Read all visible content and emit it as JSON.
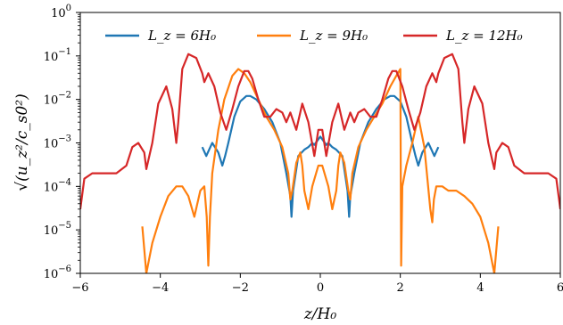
{
  "chart_data": {
    "type": "line",
    "title": "",
    "xlabel": "z/H₀",
    "ylabel": "√(u_z²/c_s0²)",
    "xlim": [
      -6,
      6
    ],
    "ylim": [
      1e-06,
      1
    ],
    "yscale": "log",
    "grid": false,
    "legend_position": "top",
    "x_ticks": [
      -6,
      -4,
      -2,
      0,
      2,
      4,
      6
    ],
    "x_tick_labels": [
      "−6",
      "−4",
      "−2",
      "0",
      "2",
      "4",
      "6"
    ],
    "y_ticks": [
      1e-06,
      1e-05,
      0.0001,
      0.001,
      0.01,
      0.1,
      1
    ],
    "y_tick_labels": [
      {
        "base": "10",
        "exp": "−6"
      },
      {
        "base": "10",
        "exp": "−5"
      },
      {
        "base": "10",
        "exp": "−4"
      },
      {
        "base": "10",
        "exp": "−3"
      },
      {
        "base": "10",
        "exp": "−2"
      },
      {
        "base": "10",
        "exp": "−1"
      },
      {
        "base": "10",
        "exp": "0"
      }
    ],
    "series": [
      {
        "name": "L_z = 6H₀",
        "color": "#1f77b4",
        "x": [
          -2.95,
          -2.85,
          -2.78,
          -2.7,
          -2.55,
          -2.45,
          -2.38,
          -2.3,
          -2.15,
          -2.0,
          -1.85,
          -1.75,
          -1.6,
          -1.4,
          -1.2,
          -1.0,
          -0.85,
          -0.75,
          -0.72,
          -0.68,
          -0.55,
          -0.4,
          -0.3,
          -0.2,
          -0.15,
          0.0,
          0.15,
          0.2,
          0.3,
          0.4,
          0.55,
          0.68,
          0.72,
          0.75,
          0.85,
          1.0,
          1.2,
          1.4,
          1.6,
          1.75,
          1.85,
          2.0,
          2.15,
          2.3,
          2.38,
          2.45,
          2.55,
          2.7,
          2.78,
          2.85,
          2.95
        ],
        "y": [
          0.0008,
          0.0005,
          0.0007,
          0.001,
          0.0006,
          0.0003,
          0.0005,
          0.001,
          0.004,
          0.009,
          0.012,
          0.012,
          0.01,
          0.006,
          0.003,
          0.001,
          0.0002,
          6e-05,
          2e-05,
          8e-05,
          0.0005,
          0.0007,
          0.0008,
          0.001,
          0.0009,
          0.0014,
          0.0009,
          0.001,
          0.0008,
          0.0007,
          0.0005,
          8e-05,
          2e-05,
          6e-05,
          0.0002,
          0.001,
          0.003,
          0.006,
          0.01,
          0.012,
          0.012,
          0.009,
          0.004,
          0.001,
          0.0005,
          0.0003,
          0.0006,
          0.001,
          0.0007,
          0.0005,
          0.0008
        ]
      },
      {
        "name": "L_z = 9H₀",
        "color": "#ff7f0e",
        "x": [
          -4.45,
          -4.35,
          -4.2,
          -4.0,
          -3.8,
          -3.6,
          -3.45,
          -3.3,
          -3.15,
          -3.0,
          -2.9,
          -2.84,
          -2.8,
          -2.76,
          -2.7,
          -2.55,
          -2.4,
          -2.2,
          -2.05,
          -1.9,
          -1.75,
          -1.55,
          -1.35,
          -1.15,
          -0.95,
          -0.8,
          -0.75,
          -0.7,
          -0.6,
          -0.5,
          -0.45,
          -0.4,
          -0.3,
          -0.2,
          -0.05,
          0.05,
          0.2,
          0.3,
          0.4,
          0.45,
          0.5,
          0.6,
          0.7,
          0.75,
          0.8,
          0.95,
          1.15,
          1.35,
          1.55,
          1.75,
          1.9,
          2.0,
          2.02,
          2.05,
          2.15,
          2.3,
          2.45,
          2.6,
          2.75,
          2.8,
          2.84,
          2.9,
          3.05,
          3.2,
          3.4,
          3.6,
          3.8,
          4.0,
          4.2,
          4.35,
          4.45
        ],
        "y": [
          1.2e-05,
          1e-06,
          5e-06,
          2e-05,
          6e-05,
          0.0001,
          0.0001,
          6e-05,
          2e-05,
          8e-05,
          0.0001,
          2e-05,
          1.5e-06,
          2e-05,
          0.0002,
          0.002,
          0.01,
          0.035,
          0.05,
          0.04,
          0.025,
          0.01,
          0.004,
          0.002,
          0.0008,
          0.0002,
          5e-05,
          8e-05,
          0.00035,
          0.0006,
          0.0003,
          8e-05,
          3e-05,
          0.0001,
          0.0003,
          0.0003,
          0.0001,
          3e-05,
          8e-05,
          0.0003,
          0.0006,
          0.00035,
          8e-05,
          5e-05,
          0.0002,
          0.0008,
          0.002,
          0.004,
          0.008,
          0.02,
          0.035,
          0.05,
          1.5e-06,
          0.0001,
          0.0003,
          0.001,
          0.004,
          0.0008,
          3e-05,
          1.5e-05,
          5e-05,
          0.0001,
          0.0001,
          8e-05,
          8e-05,
          6e-05,
          4e-05,
          2e-05,
          5e-06,
          1e-06,
          1.2e-05
        ]
      },
      {
        "name": "L_z = 12H₀",
        "color": "#d62728",
        "x": [
          -6.0,
          -5.9,
          -5.7,
          -5.4,
          -5.1,
          -4.85,
          -4.7,
          -4.55,
          -4.4,
          -4.35,
          -4.2,
          -4.05,
          -3.85,
          -3.7,
          -3.6,
          -3.55,
          -3.45,
          -3.3,
          -3.1,
          -2.95,
          -2.9,
          -2.8,
          -2.65,
          -2.5,
          -2.35,
          -2.2,
          -2.05,
          -1.9,
          -1.8,
          -1.7,
          -1.55,
          -1.4,
          -1.25,
          -1.1,
          -0.95,
          -0.85,
          -0.75,
          -0.6,
          -0.45,
          -0.3,
          -0.15,
          -0.05,
          0.05,
          0.15,
          0.3,
          0.45,
          0.6,
          0.75,
          0.85,
          0.95,
          1.1,
          1.25,
          1.4,
          1.55,
          1.7,
          1.8,
          1.9,
          2.05,
          2.2,
          2.35,
          2.5,
          2.65,
          2.8,
          2.9,
          2.95,
          3.1,
          3.3,
          3.45,
          3.55,
          3.6,
          3.7,
          3.85,
          4.05,
          4.2,
          4.35,
          4.4,
          4.55,
          4.7,
          4.85,
          5.1,
          5.4,
          5.7,
          5.9,
          6.0
        ],
        "y": [
          3e-05,
          0.00015,
          0.0002,
          0.0002,
          0.0002,
          0.0003,
          0.0008,
          0.001,
          0.0006,
          0.00025,
          0.001,
          0.008,
          0.02,
          0.006,
          0.001,
          0.003,
          0.05,
          0.11,
          0.09,
          0.04,
          0.025,
          0.04,
          0.02,
          0.005,
          0.002,
          0.006,
          0.02,
          0.045,
          0.045,
          0.03,
          0.01,
          0.004,
          0.004,
          0.006,
          0.005,
          0.003,
          0.005,
          0.002,
          0.008,
          0.003,
          0.0005,
          0.002,
          0.002,
          0.0005,
          0.003,
          0.008,
          0.002,
          0.005,
          0.003,
          0.005,
          0.006,
          0.004,
          0.004,
          0.01,
          0.03,
          0.045,
          0.045,
          0.02,
          0.006,
          0.002,
          0.005,
          0.02,
          0.04,
          0.025,
          0.04,
          0.09,
          0.11,
          0.05,
          0.003,
          0.001,
          0.006,
          0.02,
          0.008,
          0.001,
          0.00025,
          0.0006,
          0.001,
          0.0008,
          0.0003,
          0.0002,
          0.0002,
          0.0002,
          0.00015,
          3e-05
        ]
      }
    ]
  }
}
